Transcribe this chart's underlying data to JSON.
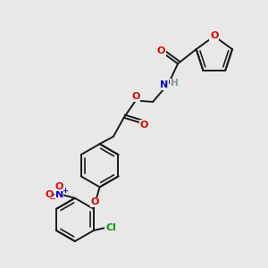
{
  "background_color": "#e8e8e8",
  "bond_color": "#1a1a1a",
  "bond_width": 1.4,
  "atom_colors": {
    "O": "#e00000",
    "N": "#0000cc",
    "Cl": "#009900",
    "H": "#7a9999",
    "C": "#1a1a1a"
  },
  "figsize": [
    3.0,
    3.0
  ],
  "dpi": 100
}
